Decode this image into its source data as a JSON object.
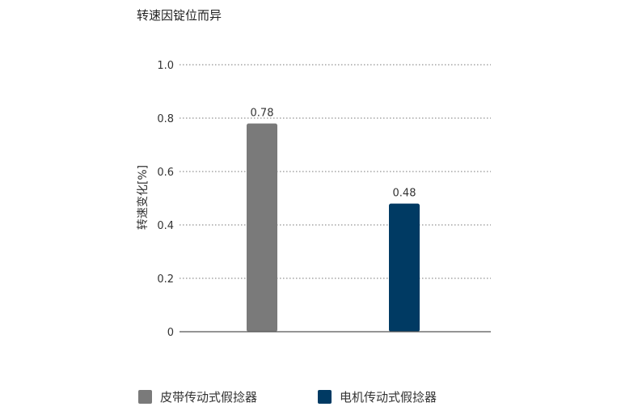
{
  "chart_data": {
    "type": "bar",
    "title": "转速因锭位而异",
    "ylabel": "转速变化[%]",
    "categories": [
      "皮带传动式假捻器",
      "电机传动式假捻器"
    ],
    "values": [
      0.78,
      0.48
    ],
    "data_labels": [
      "0.78",
      "0.48"
    ],
    "colors": [
      "#7a7a7a",
      "#003a63"
    ],
    "ylim": [
      0,
      1.0
    ],
    "yticks": [
      {
        "value": 0,
        "label": "0"
      },
      {
        "value": 0.2,
        "label": "0.2"
      },
      {
        "value": 0.4,
        "label": "0.4"
      },
      {
        "value": 0.6,
        "label": "0.6"
      },
      {
        "value": 0.8,
        "label": "0.8"
      },
      {
        "value": 1.0,
        "label": "1.0"
      }
    ],
    "grid": "dotted-horizontal",
    "legend_position": "bottom"
  }
}
